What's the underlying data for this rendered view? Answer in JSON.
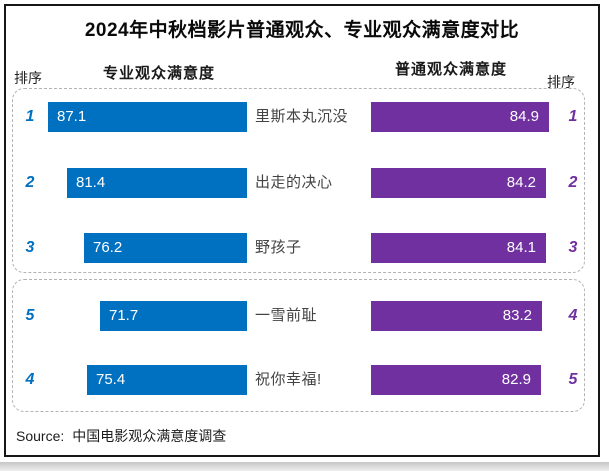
{
  "title": "2024年中秋档影片普通观众、专业观众满意度对比",
  "headers": {
    "rank_left": "排序",
    "pro": "专业观众满意度",
    "gen": "普通观众满意度",
    "rank_right": "排序"
  },
  "rows": [
    {
      "rank_pro": "1",
      "pro_value": "87.1",
      "movie": "里斯本丸沉没",
      "gen_value": "84.9",
      "rank_gen": "1"
    },
    {
      "rank_pro": "2",
      "pro_value": "81.4",
      "movie": "出走的决心",
      "gen_value": "84.2",
      "rank_gen": "2"
    },
    {
      "rank_pro": "3",
      "pro_value": "76.2",
      "movie": "野孩子",
      "gen_value": "84.1",
      "rank_gen": "3"
    },
    {
      "rank_pro": "5",
      "pro_value": "71.7",
      "movie": "一雪前耻",
      "gen_value": "83.2",
      "rank_gen": "4"
    },
    {
      "rank_pro": "4",
      "pro_value": "75.4",
      "movie": "祝你幸福!",
      "gen_value": "82.9",
      "rank_gen": "5"
    }
  ],
  "source": {
    "label": "Source:",
    "text": "中国电影观众满意度调查"
  },
  "colors": {
    "pro_bar": "#0070C0",
    "gen_bar": "#7030A0",
    "pro_rank": "#0070C0",
    "gen_rank": "#7030A0",
    "dashed_border": "#b3b3b3"
  },
  "chart_data": {
    "type": "bar",
    "orientation": "horizontal",
    "title": "2024年中秋档影片普通观众、专业观众满意度对比",
    "categories": [
      "里斯本丸沉没",
      "出走的决心",
      "野孩子",
      "一雪前耻",
      "祝你幸福!"
    ],
    "series": [
      {
        "name": "专业观众满意度",
        "values": [
          87.1,
          81.4,
          76.2,
          71.7,
          75.4
        ],
        "ranks": [
          1,
          2,
          3,
          5,
          4
        ],
        "color": "#0070C0"
      },
      {
        "name": "普通观众满意度",
        "values": [
          84.9,
          84.2,
          84.1,
          83.2,
          82.9
        ],
        "ranks": [
          1,
          2,
          3,
          4,
          5
        ],
        "color": "#7030A0"
      }
    ],
    "value_labels_shown": true,
    "groups": [
      {
        "rows": [
          0,
          1,
          2
        ],
        "note": "top dashed group"
      },
      {
        "rows": [
          3,
          4
        ],
        "note": "bottom dashed group"
      }
    ],
    "source": "中国电影观众满意度调查"
  }
}
